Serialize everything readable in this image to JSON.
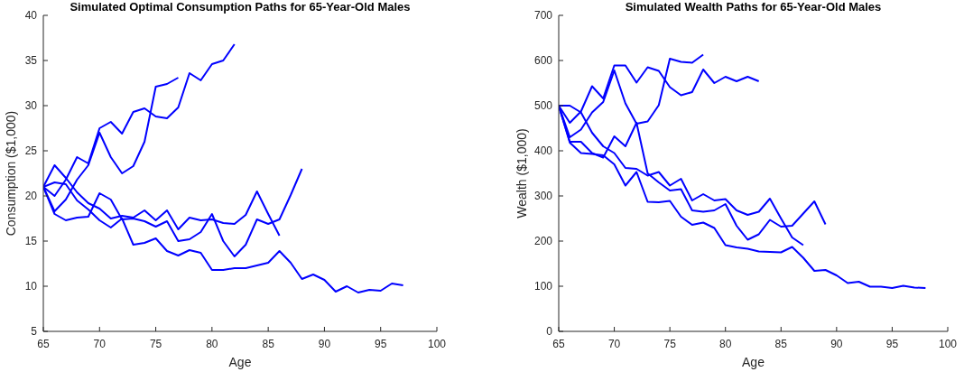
{
  "chart_data": [
    {
      "type": "line",
      "title": "Simulated Optimal Consumption Paths for 65-Year-Old Males",
      "xlabel": "Age",
      "ylabel": "Consumption ($1,000)",
      "xlim": [
        65,
        100
      ],
      "xticks": [
        65,
        70,
        75,
        80,
        85,
        90,
        95,
        100
      ],
      "ylim": [
        5,
        40
      ],
      "yticks": [
        5,
        10,
        15,
        20,
        25,
        30,
        35,
        40
      ],
      "grid": false,
      "series": [
        {
          "color": "#0000ff",
          "x": [
            65,
            66,
            67,
            68,
            69,
            70,
            71,
            72,
            73,
            74,
            75,
            76,
            77,
            78,
            79,
            80,
            81,
            82
          ],
          "values": [
            21,
            20,
            21.8,
            24.3,
            23.6,
            27.5,
            28.2,
            26.9,
            29.3,
            29.7,
            28.8,
            28.6,
            29.8,
            33.6,
            32.8,
            34.6,
            35,
            36.8
          ]
        },
        {
          "color": "#0000ff",
          "x": [
            65,
            66,
            67,
            68,
            69,
            70,
            71,
            72,
            73,
            74,
            75,
            76,
            77
          ],
          "values": [
            21,
            18.3,
            19.6,
            21.8,
            23.4,
            27,
            24.3,
            22.5,
            23.3,
            26,
            32.1,
            32.4,
            33.1
          ]
        },
        {
          "color": "#0000ff",
          "x": [
            65,
            66,
            67,
            68,
            69,
            70,
            71,
            72,
            73,
            74,
            75,
            76,
            77,
            78,
            79,
            80,
            81,
            82,
            83,
            84,
            85,
            86
          ],
          "values": [
            21,
            23.4,
            22,
            20.4,
            19.2,
            18.6,
            17.5,
            17.8,
            17.6,
            18.4,
            17.3,
            18.4,
            16.3,
            17.6,
            17.3,
            17.4,
            17,
            16.9,
            17.9,
            20.5,
            18,
            15.6
          ]
        },
        {
          "color": "#0000ff",
          "x": [
            65,
            66,
            67,
            68,
            69,
            70,
            71,
            72,
            73,
            74,
            75,
            76,
            77,
            78,
            79,
            80,
            81,
            82,
            83,
            84,
            85,
            86,
            87,
            88
          ],
          "values": [
            21,
            18,
            17.3,
            17.6,
            17.7,
            20.3,
            19.6,
            17.4,
            17.5,
            17.2,
            16.6,
            17.2,
            15,
            15.2,
            16,
            18,
            15,
            13.3,
            14.6,
            17.4,
            16.9,
            17.4,
            20.1,
            23
          ]
        },
        {
          "color": "#0000ff",
          "x": [
            65,
            66,
            67,
            68,
            69,
            70,
            71,
            72,
            73,
            74,
            75,
            76,
            77,
            78,
            79,
            80,
            81,
            82,
            83,
            84,
            85,
            86,
            87,
            88,
            89,
            90,
            91,
            92,
            93,
            94,
            95,
            96,
            97
          ],
          "values": [
            21,
            21.5,
            21.3,
            19.5,
            18.5,
            17.3,
            16.5,
            17.5,
            14.6,
            14.8,
            15.3,
            13.9,
            13.4,
            14,
            13.7,
            11.8,
            11.8,
            12,
            12,
            12.3,
            12.6,
            13.9,
            12.6,
            10.8,
            11.3,
            10.7,
            9.4,
            10,
            9.3,
            9.6,
            9.5,
            10.3,
            10.1
          ]
        }
      ]
    },
    {
      "type": "line",
      "title": "Simulated Wealth Paths for 65-Year-Old Males",
      "xlabel": "Age",
      "ylabel": "Wealth ($1,000)",
      "xlim": [
        65,
        100
      ],
      "xticks": [
        65,
        70,
        75,
        80,
        85,
        90,
        95,
        100
      ],
      "ylim": [
        0,
        700
      ],
      "yticks": [
        0,
        100,
        200,
        300,
        400,
        500,
        600,
        700
      ],
      "grid": false,
      "series": [
        {
          "color": "#0000ff",
          "x": [
            65,
            66,
            67,
            68,
            69,
            70,
            71,
            72,
            73,
            74,
            75,
            76,
            77,
            78,
            79,
            80,
            81,
            82,
            83
          ],
          "values": [
            500,
            462,
            487,
            543,
            516,
            589,
            589,
            551,
            585,
            577,
            541,
            523,
            530,
            580,
            550,
            564,
            554,
            564,
            554
          ]
        },
        {
          "color": "#0000ff",
          "x": [
            65,
            66,
            67,
            68,
            69,
            70,
            71,
            72,
            73,
            74,
            75,
            76,
            77,
            78
          ],
          "values": [
            500,
            430,
            447,
            485,
            508,
            578,
            505,
            460,
            465,
            501,
            604,
            597,
            595,
            613
          ]
        },
        {
          "color": "#0000ff",
          "x": [
            65,
            66,
            67,
            68,
            69,
            70,
            71,
            72,
            73,
            74,
            75,
            76,
            77,
            78,
            79,
            80,
            81,
            82,
            83,
            84,
            85,
            86,
            87
          ],
          "values": [
            500,
            500,
            485,
            440,
            410,
            395,
            362,
            360,
            345,
            353,
            323,
            338,
            290,
            304,
            290,
            293,
            268,
            258,
            265,
            294,
            250,
            208,
            191
          ]
        },
        {
          "color": "#0000ff",
          "x": [
            65,
            66,
            67,
            68,
            69,
            70,
            71,
            72,
            73,
            74,
            75,
            76,
            77,
            78,
            79,
            80,
            81,
            82,
            83,
            84,
            85,
            86,
            87,
            88,
            89
          ],
          "values": [
            500,
            420,
            420,
            395,
            385,
            432,
            410,
            462,
            350,
            330,
            312,
            315,
            268,
            265,
            268,
            282,
            234,
            203,
            215,
            247,
            232,
            234,
            261,
            288,
            237
          ]
        },
        {
          "color": "#0000ff",
          "x": [
            65,
            66,
            67,
            68,
            69,
            70,
            71,
            72,
            73,
            74,
            75,
            76,
            77,
            78,
            79,
            80,
            81,
            82,
            83,
            84,
            85,
            86,
            87,
            88,
            89,
            90,
            91,
            92,
            93,
            94,
            95,
            96,
            97,
            98
          ],
          "values": [
            500,
            418,
            395,
            393,
            390,
            370,
            323,
            353,
            287,
            286,
            289,
            254,
            236,
            241,
            229,
            191,
            186,
            183,
            177,
            176,
            175,
            187,
            163,
            134,
            136,
            124,
            107,
            110,
            99,
            99,
            96,
            101,
            97,
            96
          ]
        }
      ]
    }
  ]
}
